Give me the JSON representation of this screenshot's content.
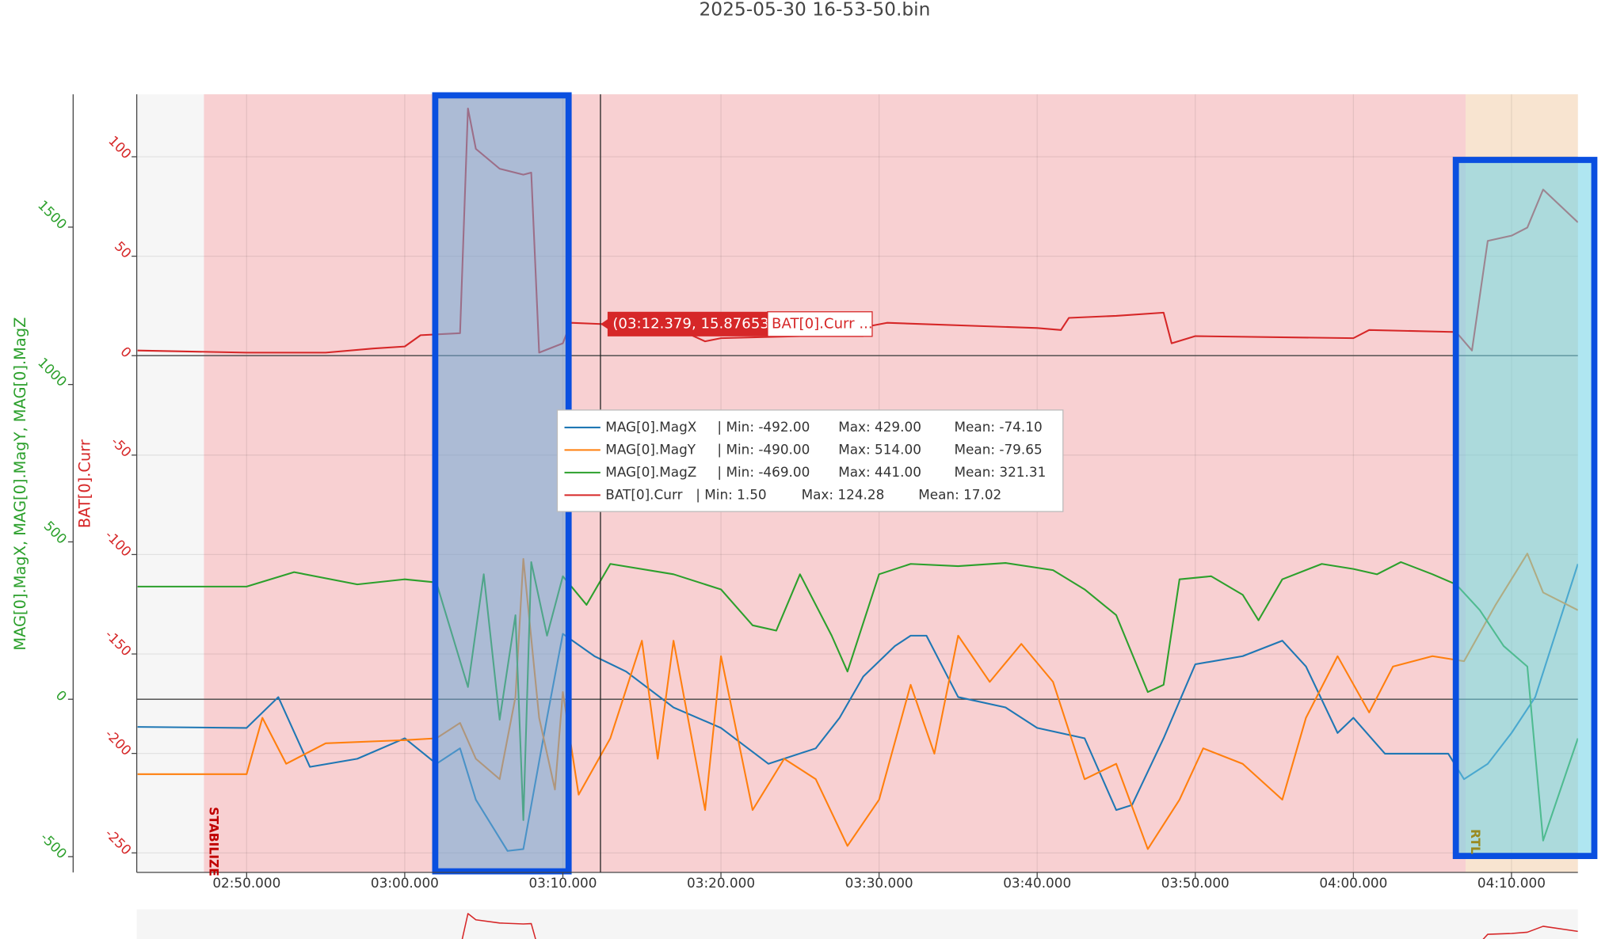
{
  "chart_data": {
    "type": "line",
    "title": "2025-05-30 16-53-50.bin",
    "y_label": "MAG[0].MagX, MAG[0].MagY, MAG[0].MagZ",
    "y2_label": "BAT[0].Curr",
    "xlim": [
      163.05,
      254.2
    ],
    "xticks": [
      {
        "value": 170,
        "label": "02:50.000"
      },
      {
        "value": 180,
        "label": "03:00.000"
      },
      {
        "value": 190,
        "label": "03:10.000"
      },
      {
        "value": 200,
        "label": "03:20.000"
      },
      {
        "value": 210,
        "label": "03:30.000"
      },
      {
        "value": 220,
        "label": "03:40.000"
      },
      {
        "value": 230,
        "label": "03:50.000"
      },
      {
        "value": 240,
        "label": "04:00.000"
      },
      {
        "value": 250,
        "label": "04:10.000"
      }
    ],
    "ylim": [
      -550,
      1922
    ],
    "yticks": [
      -500,
      0,
      500,
      1000,
      1500
    ],
    "y2lim": [
      -259.8,
      131.4
    ],
    "y2ticks": [
      -250,
      -200,
      -150,
      -100,
      -50,
      0,
      50,
      100
    ],
    "grid": true,
    "modes": [
      {
        "label": "STABILIZE",
        "start": 167.3,
        "end": 247.1,
        "color": "#f8d0d2",
        "text_color": "#c00000"
      },
      {
        "label": "RTL",
        "start": 247.1,
        "end": 254.2,
        "color": "#f8e4d0",
        "text_color": "#9a8a20"
      }
    ],
    "series": [
      {
        "name": "MAG[0].MagX",
        "color": "#1f77b4",
        "stats": [
          "| Min: -492.00",
          "Max: 429.00",
          "Mean: -74.10"
        ],
        "x": [
          163.1,
          170,
          172,
          174,
          177,
          180,
          182,
          183.5,
          184.5,
          186.5,
          187.5,
          189,
          190,
          192,
          194,
          197,
          200,
          203,
          206,
          207.5,
          209,
          211,
          212,
          213,
          215,
          218,
          220,
          223,
          225,
          226,
          228,
          230,
          233,
          235.5,
          237,
          239,
          240,
          242,
          244,
          246,
          247,
          248.5,
          250,
          251.5,
          254.2
        ],
        "values": [
          -88,
          -91,
          7,
          -215,
          -189,
          -124,
          -205,
          -156,
          -319,
          -482,
          -476,
          -59,
          208,
          137,
          88,
          -26,
          -91,
          -205,
          -156,
          -59,
          72,
          169,
          202,
          202,
          7,
          -26,
          -91,
          -124,
          -352,
          -336,
          -124,
          111,
          137,
          186,
          104,
          -107,
          -59,
          -173,
          -173,
          -173,
          -254,
          -205,
          -107,
          7,
          430
        ]
      },
      {
        "name": "MAG[0].MagY",
        "color": "#ff7f0e",
        "stats": [
          "| Min: -490.00",
          "Max: 514.00",
          "Mean: -79.65"
        ],
        "x": [
          163.1,
          170,
          171,
          172.5,
          175,
          180,
          182,
          183.5,
          184.5,
          186,
          187,
          187.5,
          188.5,
          189.5,
          190,
          191,
          193,
          195,
          196,
          197,
          199,
          200,
          202,
          204,
          206,
          208,
          210,
          212,
          213.5,
          215,
          217,
          219,
          221,
          223,
          225,
          227,
          229,
          230.5,
          233,
          235.5,
          237,
          239,
          241,
          242.5,
          245,
          247,
          249,
          251,
          252,
          254.2
        ],
        "values": [
          -238,
          -238,
          -59,
          -205,
          -140,
          -130,
          -124,
          -75,
          -189,
          -254,
          7,
          446,
          -59,
          -287,
          23,
          -303,
          -124,
          186,
          -189,
          186,
          -352,
          137,
          -352,
          -189,
          -254,
          -466,
          -319,
          46,
          -173,
          202,
          55,
          176,
          55,
          -254,
          -205,
          -476,
          -319,
          -156,
          -205,
          -319,
          -59,
          137,
          -42,
          104,
          137,
          121,
          300,
          463,
          339,
          283
        ]
      },
      {
        "name": "MAG[0].MagZ",
        "color": "#2ca02c",
        "stats": [
          "| Min: -469.00",
          "Max: 441.00",
          "Mean: 321.31"
        ],
        "x": [
          163.1,
          170,
          173,
          177,
          180,
          182,
          184,
          185,
          186,
          187,
          187.5,
          188,
          189,
          190,
          191.5,
          193,
          197,
          200,
          202,
          203.5,
          205,
          207,
          208,
          210,
          212,
          215,
          218,
          221,
          223,
          225,
          227,
          228,
          229,
          231,
          233,
          234,
          235.5,
          238,
          240,
          241.5,
          243,
          245,
          246.5,
          248,
          249.5,
          251,
          252,
          254.2
        ],
        "values": [
          358,
          358,
          404,
          365,
          381,
          371,
          39,
          397,
          -65,
          267,
          -384,
          436,
          202,
          391,
          300,
          430,
          397,
          349,
          235,
          218,
          397,
          202,
          88,
          397,
          430,
          423,
          433,
          410,
          349,
          267,
          23,
          46,
          381,
          391,
          332,
          251,
          381,
          430,
          414,
          397,
          436,
          397,
          365,
          283,
          169,
          104,
          -449,
          -124
        ]
      },
      {
        "name": "BAT[0].Curr",
        "color": "#d62728",
        "axis": "y2",
        "stats": [
          "| Min: 1.50",
          "Max: 124.28",
          "Mean: 17.02"
        ],
        "x": [
          163.1,
          170,
          175,
          178,
          180,
          181,
          183.5,
          184,
          184.5,
          186,
          187.5,
          188,
          188.5,
          190,
          190.5,
          192.4,
          195,
          196,
          199,
          200,
          205,
          209,
          209.5,
          210.5,
          220,
          221.5,
          222,
          225,
          228,
          228.5,
          230,
          240,
          241,
          246.5,
          247.5,
          248.5,
          250,
          251,
          252,
          254.2
        ],
        "values": [
          2.6,
          1.5,
          1.5,
          3.6,
          4.6,
          10.3,
          11.3,
          124.28,
          104,
          94,
          91,
          92,
          1.5,
          6.2,
          16.5,
          15.9,
          13.9,
          18,
          7.2,
          8.8,
          9.8,
          9.8,
          15,
          16.5,
          13.9,
          12.9,
          19,
          20,
          21.6,
          6.2,
          9.8,
          8.8,
          12.9,
          11.9,
          2.6,
          57.7,
          60.3,
          64.4,
          83.5,
          67
        ]
      }
    ],
    "hover": {
      "x": 192.379,
      "value": 15.87653,
      "label": "(03:12.379, 15.87653)",
      "series_label": "BAT[0].Curr ..."
    }
  }
}
